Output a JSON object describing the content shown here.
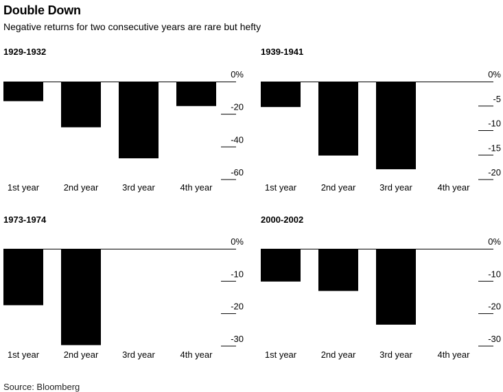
{
  "header": {
    "title": "Double Down",
    "subtitle": "Negative returns for two consecutive years are rare but hefty"
  },
  "footer": {
    "source": "Source: Bloomberg"
  },
  "chart_data": [
    {
      "type": "bar",
      "title": "1929-1932",
      "categories": [
        "1st year",
        "2nd year",
        "3rd year",
        "4th year"
      ],
      "values": [
        -12,
        -28,
        -47,
        -15
      ],
      "ylim": [
        -60,
        0
      ],
      "yticks": [
        0,
        -20,
        -40,
        -60
      ],
      "ytick_labels": [
        "0%",
        "-20",
        "-40",
        "-60"
      ]
    },
    {
      "type": "bar",
      "title": "1939-1941",
      "categories": [
        "1st year",
        "2nd year",
        "3rd year",
        "4th year"
      ],
      "values": [
        -5.2,
        -15.1,
        -17.9,
        null
      ],
      "ylim": [
        -20,
        0
      ],
      "yticks": [
        0,
        -5,
        -10,
        -15,
        -20
      ],
      "ytick_labels": [
        "0%",
        "-5",
        "-10",
        "-15",
        "-20"
      ]
    },
    {
      "type": "bar",
      "title": "1973-1974",
      "categories": [
        "1st year",
        "2nd year",
        "3rd year",
        "4th year"
      ],
      "values": [
        -17.4,
        -29.7,
        null,
        null
      ],
      "ylim": [
        -30,
        0
      ],
      "yticks": [
        0,
        -10,
        -20,
        -30
      ],
      "ytick_labels": [
        "0%",
        "-10",
        "-20",
        "-30"
      ]
    },
    {
      "type": "bar",
      "title": "2000-2002",
      "categories": [
        "1st year",
        "2nd year",
        "3rd year",
        "4th year"
      ],
      "values": [
        -10.1,
        -13.0,
        -23.4,
        null
      ],
      "ylim": [
        -30,
        0
      ],
      "yticks": [
        0,
        -10,
        -20,
        -30
      ],
      "ytick_labels": [
        "0%",
        "-10",
        "-20",
        "-30"
      ]
    }
  ]
}
